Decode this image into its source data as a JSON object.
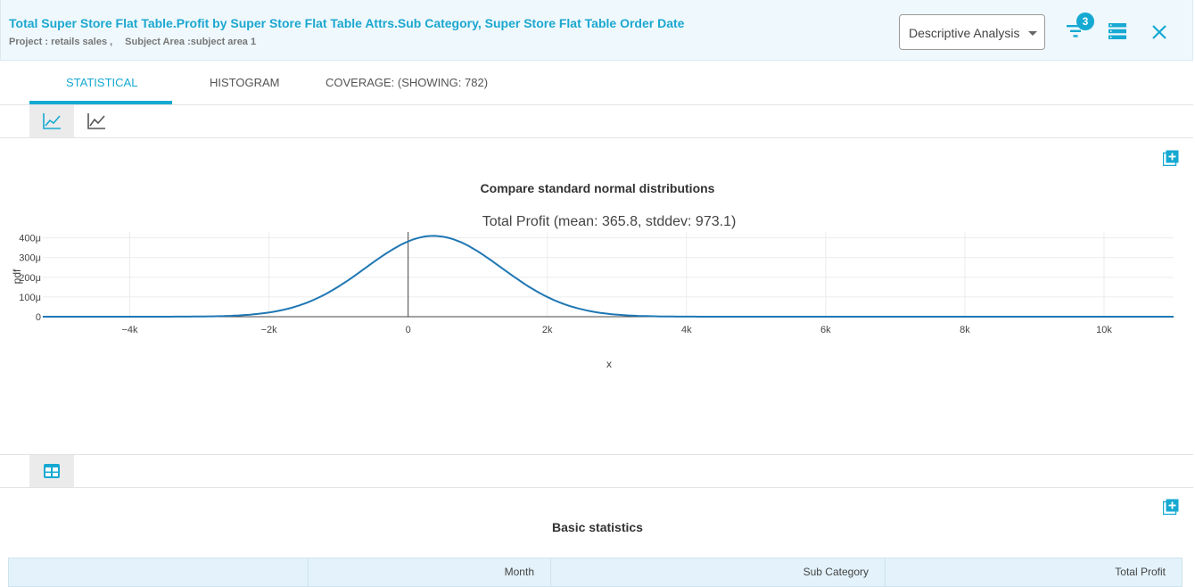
{
  "header": {
    "title": "Total Super Store Flat Table.Profit by Super Store Flat Table Attrs.Sub Category, Super Store Flat Table Order Date",
    "project": "Project : retails sales ,",
    "subject_area": "Subject Area :subject area 1",
    "analysis_select": "Descriptive Analysis",
    "filter_count": "3",
    "icons": [
      "filter-icon",
      "list-icon",
      "close-icon"
    ],
    "accent_color": "#16a9d2"
  },
  "tabs": [
    {
      "label": "STATISTICAL",
      "active": true
    },
    {
      "label": "HISTOGRAM",
      "active": false
    },
    {
      "label": "COVERAGE: (SHOWING: 782)",
      "active": false
    }
  ],
  "section1": {
    "heading": "Compare standard normal distributions"
  },
  "chart_data": {
    "type": "line",
    "title": "Total Profit (mean: 365.8, stddev: 973.1)",
    "xlabel": "x",
    "ylabel": "pdf",
    "mean": 365.8,
    "stddev": 973.1,
    "xlim": [
      -5250,
      11000
    ],
    "ylim": [
      0,
      0.00043
    ],
    "xticks": [
      -4000,
      -2000,
      0,
      2000,
      4000,
      6000,
      8000,
      10000
    ],
    "xtick_labels": [
      "−4k",
      "−2k",
      "0",
      "2k",
      "4k",
      "6k",
      "8k",
      "10k"
    ],
    "yticks": [
      0,
      0.0001,
      0.0002,
      0.0003,
      0.0004
    ],
    "ytick_labels": [
      "0",
      "100μ",
      "200μ",
      "300μ",
      "400μ"
    ],
    "grid": true,
    "line_color": "#1f77b4"
  },
  "section2": {
    "heading": "Basic statistics",
    "columns": [
      "",
      "Month",
      "Sub Category",
      "Total Profit"
    ]
  }
}
